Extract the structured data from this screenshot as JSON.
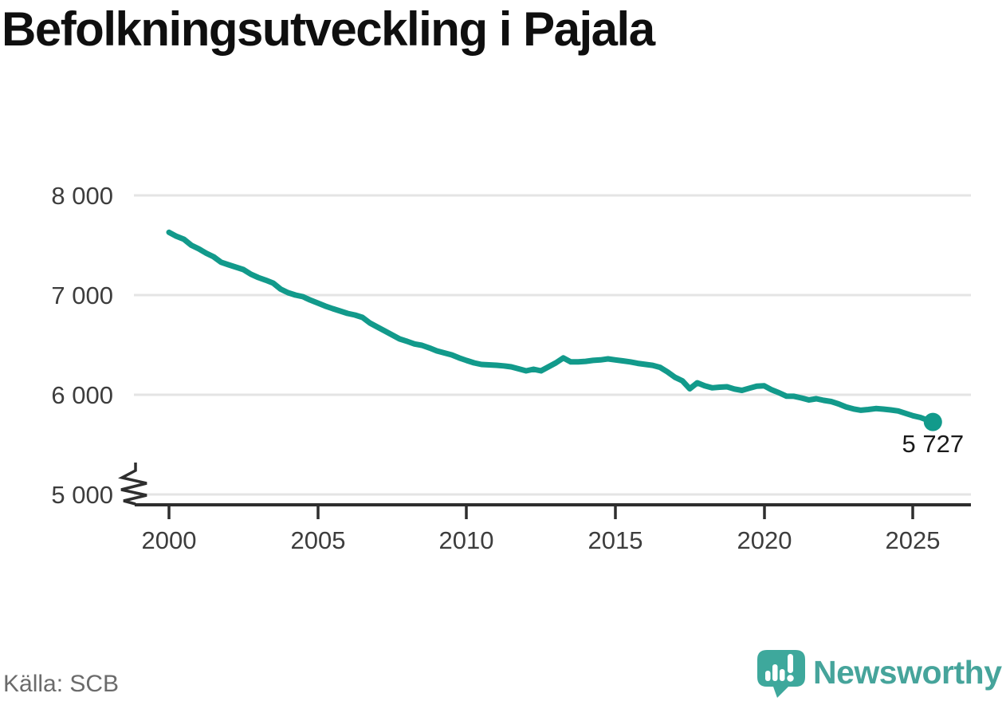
{
  "header": {
    "title": "Befolkningsutveckling i Pajala"
  },
  "footer": {
    "source": "Källa: SCB",
    "brand": {
      "name": "Newsworthy",
      "logo_icon": "bar-chart-speech-bubble-icon",
      "color": "#46a49b"
    }
  },
  "colors": {
    "line": "#129a8b",
    "gridline": "#e4e4e4",
    "axis": "#2e2e2e",
    "tick_text": "#3d3d3d",
    "title_text": "#0f0f0f",
    "source_text": "#6b6b6b"
  },
  "chart_data": {
    "type": "line",
    "title": "Befolkningsutveckling i Pajala",
    "xlabel": "",
    "ylabel": "",
    "grid": "horizontal",
    "legend": "none",
    "y_axis_break": true,
    "ylim": [
      5000,
      8000
    ],
    "xlim": [
      2000,
      2026.3
    ],
    "y_ticks": [
      "5 000",
      "6 000",
      "7 000",
      "8 000"
    ],
    "y_tick_values": [
      5000,
      6000,
      7000,
      8000
    ],
    "x_ticks": [
      "2000",
      "2005",
      "2010",
      "2015",
      "2020",
      "2025"
    ],
    "x_tick_values": [
      2000,
      2005,
      2010,
      2015,
      2020,
      2025
    ],
    "end_point_label": "5 727",
    "end_point_value": 5727,
    "x": [
      2000,
      2000.25,
      2000.5,
      2000.75,
      2001,
      2001.25,
      2001.5,
      2001.75,
      2002,
      2002.25,
      2002.5,
      2002.75,
      2003,
      2003.25,
      2003.5,
      2003.75,
      2004,
      2004.25,
      2004.5,
      2004.75,
      2005,
      2005.25,
      2005.5,
      2005.75,
      2006,
      2006.25,
      2006.5,
      2006.75,
      2007,
      2007.25,
      2007.5,
      2007.75,
      2008,
      2008.25,
      2008.5,
      2008.75,
      2009,
      2009.25,
      2009.5,
      2009.75,
      2010,
      2010.25,
      2010.5,
      2010.75,
      2011,
      2011.25,
      2011.5,
      2011.75,
      2012,
      2012.25,
      2012.5,
      2012.75,
      2013,
      2013.25,
      2013.5,
      2013.75,
      2014,
      2014.25,
      2014.5,
      2014.75,
      2015,
      2015.25,
      2015.5,
      2015.75,
      2016,
      2016.25,
      2016.5,
      2016.75,
      2017,
      2017.25,
      2017.5,
      2017.75,
      2018,
      2018.25,
      2018.5,
      2018.75,
      2019,
      2019.25,
      2019.5,
      2019.75,
      2020,
      2020.25,
      2020.5,
      2020.75,
      2021,
      2021.25,
      2021.5,
      2021.75,
      2022,
      2022.25,
      2022.5,
      2022.75,
      2023,
      2023.25,
      2023.5,
      2023.75,
      2024,
      2024.25,
      2024.5,
      2024.75,
      2025,
      2025.25,
      2025.5,
      2025.67
    ],
    "values": [
      7630,
      7590,
      7560,
      7500,
      7464,
      7420,
      7384,
      7330,
      7304,
      7280,
      7256,
      7210,
      7176,
      7150,
      7120,
      7060,
      7024,
      7000,
      6984,
      6950,
      6920,
      6890,
      6864,
      6840,
      6816,
      6800,
      6776,
      6720,
      6680,
      6640,
      6600,
      6560,
      6536,
      6510,
      6496,
      6470,
      6440,
      6420,
      6400,
      6370,
      6344,
      6320,
      6304,
      6300,
      6296,
      6290,
      6280,
      6260,
      6240,
      6256,
      6240,
      6280,
      6320,
      6370,
      6330,
      6330,
      6335,
      6345,
      6350,
      6360,
      6350,
      6340,
      6330,
      6315,
      6305,
      6295,
      6275,
      6230,
      6175,
      6140,
      6060,
      6120,
      6090,
      6070,
      6076,
      6080,
      6058,
      6044,
      6066,
      6086,
      6090,
      6050,
      6020,
      5986,
      5985,
      5968,
      5948,
      5960,
      5944,
      5932,
      5908,
      5878,
      5858,
      5845,
      5852,
      5862,
      5856,
      5848,
      5838,
      5814,
      5790,
      5772,
      5744,
      5727
    ]
  }
}
